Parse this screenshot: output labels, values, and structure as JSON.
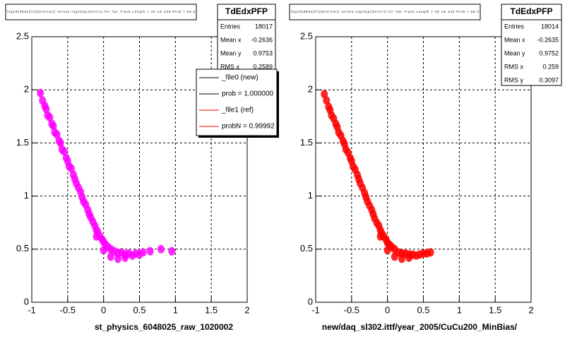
{
  "chart_data": [
    {
      "type": "scatter",
      "title": "log10(dEdx(fit)(keV/cm)) versus log10(p(GeV/c)) for Tpc Track.Length > 40 cm and Prob > 68.3",
      "xlabel": "st_physics_6048025_raw_1020002",
      "stats_title": "TdEdxPFP",
      "stats": [
        {
          "name": "Entries",
          "value": 18017
        },
        {
          "name": "Mean x",
          "value": -0.2636
        },
        {
          "name": "Mean y",
          "value": 0.9753
        },
        {
          "name": "RMS x",
          "value": 0.2589
        }
      ],
      "legend": [
        {
          "name": "_file0 (new)",
          "color": "#000000"
        },
        {
          "name": "prob = 1.000000",
          "color": "#000000"
        },
        {
          "name": "_file1 (ref)",
          "color": "#ff0000"
        },
        {
          "name": "probN = 0.99992",
          "color": "#ff0000"
        }
      ],
      "color": "#ff00ff",
      "xlim": [
        -1,
        2
      ],
      "ylim": [
        0,
        2.5
      ],
      "xticks": [
        -1,
        -0.5,
        0,
        0.5,
        1,
        1.5,
        2
      ],
      "yticks": [
        0,
        0.5,
        1,
        1.5,
        2,
        2.5
      ],
      "grid": true,
      "x": [
        -0.88,
        -0.85,
        -0.82,
        -0.8,
        -0.78,
        -0.75,
        -0.72,
        -0.7,
        -0.68,
        -0.65,
        -0.62,
        -0.6,
        -0.58,
        -0.55,
        -0.52,
        -0.5,
        -0.48,
        -0.45,
        -0.42,
        -0.4,
        -0.38,
        -0.35,
        -0.32,
        -0.3,
        -0.28,
        -0.25,
        -0.22,
        -0.2,
        -0.18,
        -0.15,
        -0.12,
        -0.1,
        -0.08,
        -0.05,
        -0.02,
        0,
        0.03,
        0.06,
        0.1,
        0.15,
        0.2,
        0.25,
        0.3,
        0.35,
        0.4,
        0.45,
        0.5,
        0.55,
        0.65,
        0.8,
        0.95,
        0.1,
        0.2,
        0.3,
        0.0,
        -0.1
      ],
      "values": [
        1.97,
        1.9,
        1.85,
        1.82,
        1.76,
        1.74,
        1.68,
        1.66,
        1.6,
        1.58,
        1.52,
        1.5,
        1.44,
        1.42,
        1.36,
        1.33,
        1.28,
        1.26,
        1.2,
        1.16,
        1.12,
        1.08,
        1.04,
        0.99,
        0.95,
        0.92,
        0.87,
        0.83,
        0.8,
        0.76,
        0.72,
        0.68,
        0.66,
        0.62,
        0.59,
        0.57,
        0.54,
        0.52,
        0.5,
        0.48,
        0.46,
        0.47,
        0.45,
        0.46,
        0.44,
        0.46,
        0.45,
        0.47,
        0.48,
        0.5,
        0.48,
        0.43,
        0.41,
        0.42,
        0.49,
        0.62
      ]
    },
    {
      "type": "scatter",
      "title": "log10(dEdx(fit)(keV/cm)) versus log10(p(GeV/c)) for Tpc Track.Length > 40 cm and Prob > 68.3",
      "xlabel": "new/daq_sl302.ittf/year_2005/CuCu200_MinBias/",
      "stats_title": "TdEdxPFP",
      "stats": [
        {
          "name": "Entries",
          "value": 18014
        },
        {
          "name": "Mean x",
          "value": -0.2635
        },
        {
          "name": "Mean y",
          "value": 0.9752
        },
        {
          "name": "RMS x",
          "value": 0.259
        },
        {
          "name": "RMS y",
          "value": 0.3097
        }
      ],
      "color": "#ff0000",
      "xlim": [
        -1,
        2
      ],
      "ylim": [
        0,
        2.5
      ],
      "xticks": [
        -1,
        -0.5,
        0,
        0.5,
        1,
        1.5,
        2
      ],
      "yticks": [
        0,
        0.5,
        1,
        1.5,
        2,
        2.5
      ],
      "grid": true,
      "x": [
        -0.88,
        -0.85,
        -0.82,
        -0.8,
        -0.78,
        -0.75,
        -0.72,
        -0.7,
        -0.68,
        -0.65,
        -0.62,
        -0.6,
        -0.58,
        -0.55,
        -0.52,
        -0.5,
        -0.48,
        -0.45,
        -0.42,
        -0.4,
        -0.38,
        -0.35,
        -0.32,
        -0.3,
        -0.28,
        -0.25,
        -0.22,
        -0.2,
        -0.18,
        -0.15,
        -0.12,
        -0.1,
        -0.08,
        -0.05,
        -0.02,
        0,
        0.03,
        0.06,
        0.1,
        0.15,
        0.2,
        0.25,
        0.3,
        0.35,
        0.4,
        0.45,
        0.5,
        0.55,
        0.6,
        0.1,
        0.2,
        0.3,
        0.0,
        -0.1
      ],
      "values": [
        1.96,
        1.9,
        1.84,
        1.81,
        1.76,
        1.73,
        1.68,
        1.65,
        1.6,
        1.57,
        1.52,
        1.49,
        1.44,
        1.41,
        1.36,
        1.33,
        1.28,
        1.25,
        1.2,
        1.16,
        1.12,
        1.08,
        1.03,
        0.99,
        0.95,
        0.91,
        0.87,
        0.83,
        0.79,
        0.75,
        0.72,
        0.68,
        0.65,
        0.62,
        0.59,
        0.56,
        0.54,
        0.52,
        0.5,
        0.47,
        0.46,
        0.46,
        0.45,
        0.45,
        0.44,
        0.45,
        0.46,
        0.46,
        0.47,
        0.43,
        0.41,
        0.42,
        0.49,
        0.62
      ]
    }
  ]
}
